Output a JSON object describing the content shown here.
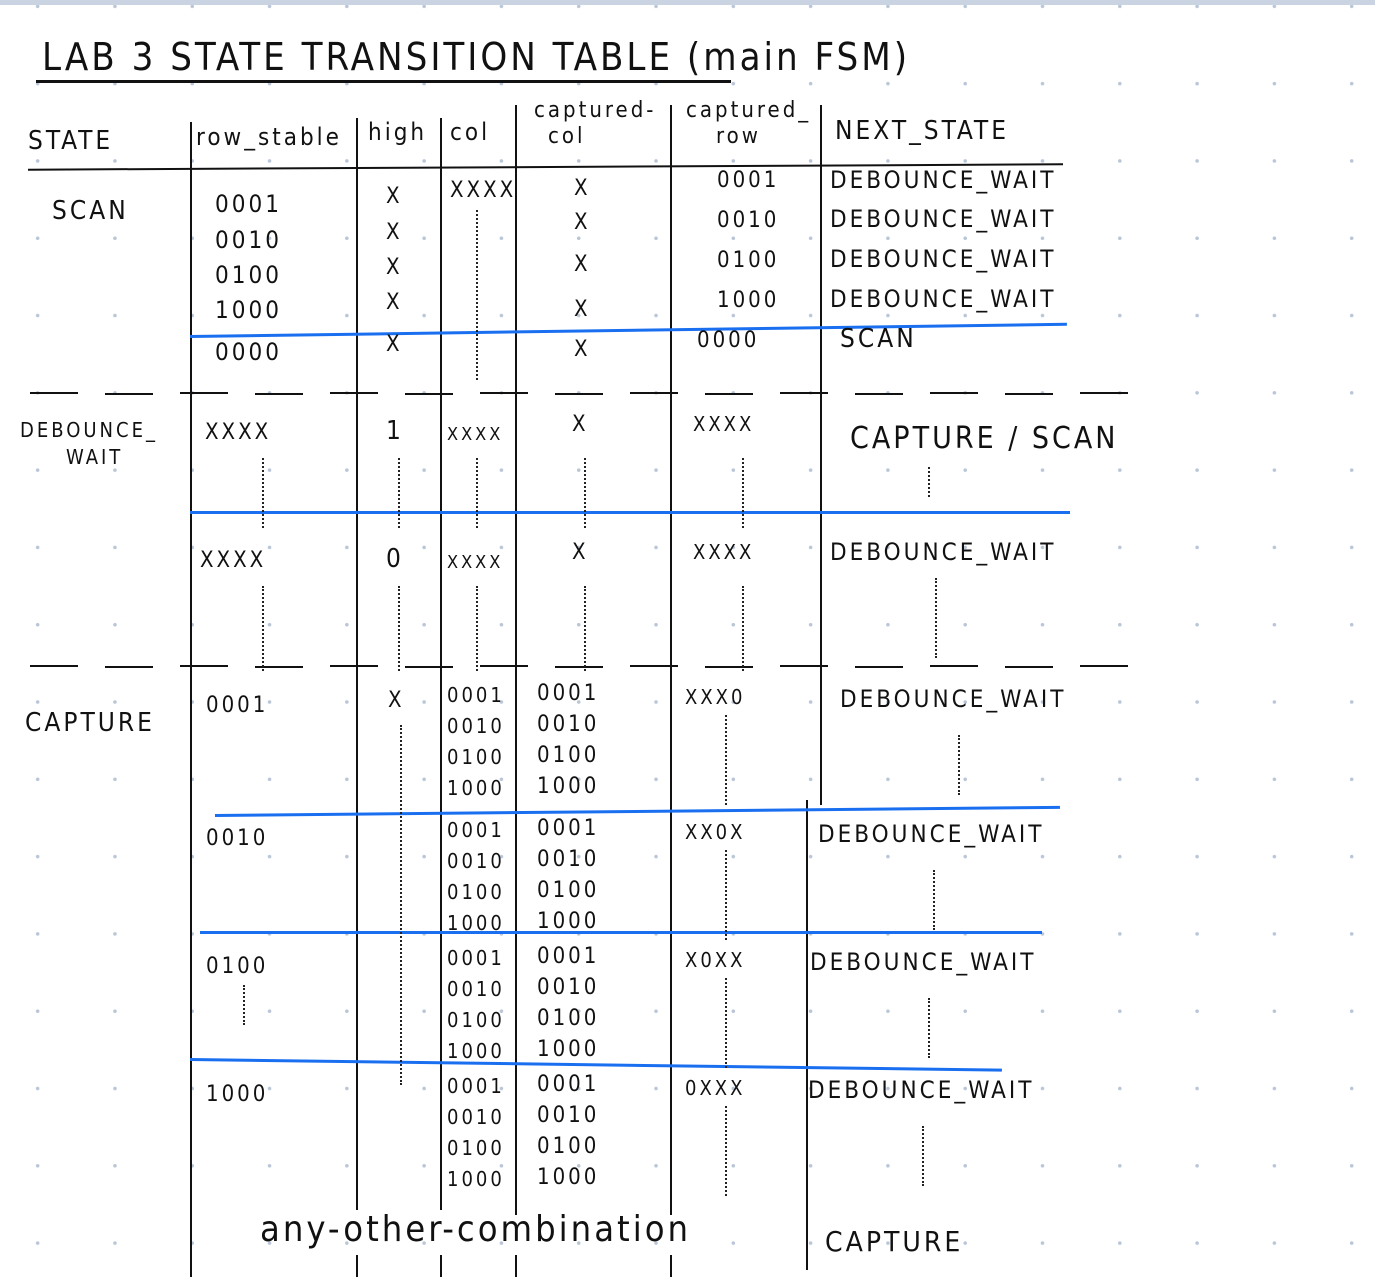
{
  "title": "LAB 3 STATE TRANSITION TABLE (main FSM)",
  "headers": {
    "state": "STATE",
    "row_stable": "row_stable",
    "high": "high",
    "col": "col",
    "captured_col_1": "captured-",
    "captured_col_2": "col",
    "captured_row_1": "captured_",
    "captured_row_2": "row",
    "next_state": "NEXT_STATE"
  },
  "scan": {
    "state": "SCAN",
    "col": "XXXX",
    "rows": [
      {
        "row_stable": "0001",
        "high": "X",
        "captured_col": "X",
        "captured_row": "0001",
        "next_state": "DEBOUNCE_WAIT"
      },
      {
        "row_stable": "0010",
        "high": "X",
        "captured_col": "X",
        "captured_row": "0010",
        "next_state": "DEBOUNCE_WAIT"
      },
      {
        "row_stable": "0100",
        "high": "X",
        "captured_col": "X",
        "captured_row": "0100",
        "next_state": "DEBOUNCE_WAIT"
      },
      {
        "row_stable": "1000",
        "high": "X",
        "captured_col": "X",
        "captured_row": "1000",
        "next_state": "DEBOUNCE_WAIT"
      },
      {
        "row_stable": "0000",
        "high": "X",
        "captured_col": "X",
        "captured_row": "0000",
        "next_state": "SCAN"
      }
    ]
  },
  "debounce": {
    "state_1": "DEBOUNCE_",
    "state_2": "WAIT",
    "rows": [
      {
        "row_stable": "XXXX",
        "high": "1",
        "col": "XXXX",
        "captured_col": "X",
        "captured_row": "XXXX",
        "next_state": "CAPTURE / SCAN"
      },
      {
        "row_stable": "XXXX",
        "high": "0",
        "col": "XXXX",
        "captured_col": "X",
        "captured_row": "XXXX",
        "next_state": "DEBOUNCE_WAIT"
      }
    ]
  },
  "capture": {
    "state": "CAPTURE",
    "groups": [
      {
        "row_stable": "0001",
        "high": "X",
        "col": [
          "0001",
          "0010",
          "0100",
          "1000"
        ],
        "captured_col": [
          "0001",
          "0010",
          "0100",
          "1000"
        ],
        "captured_row": "XXX0",
        "next_state": "DEBOUNCE_WAIT"
      },
      {
        "row_stable": "0010",
        "col": [
          "0001",
          "0010",
          "0100",
          "1000"
        ],
        "captured_col": [
          "0001",
          "0010",
          "0100",
          "1000"
        ],
        "captured_row": "XX0X",
        "next_state": "DEBOUNCE_WAIT"
      },
      {
        "row_stable": "0100",
        "col": [
          "0001",
          "0010",
          "0100",
          "1000"
        ],
        "captured_col": [
          "0001",
          "0010",
          "0100",
          "1000"
        ],
        "captured_row": "X0XX",
        "next_state": "DEBOUNCE_WAIT"
      },
      {
        "row_stable": "1000",
        "col": [
          "0001",
          "0010",
          "0100",
          "1000"
        ],
        "captured_col": [
          "0001",
          "0010",
          "0100",
          "1000"
        ],
        "captured_row": "0XXX",
        "next_state": "DEBOUNCE_WAIT"
      }
    ],
    "other_label": "any-other-combination",
    "other_next_state": "CAPTURE"
  },
  "colors": {
    "ink": "#111111",
    "divider": "#1a6ff0",
    "grid_dots": "#b9c6d8"
  }
}
